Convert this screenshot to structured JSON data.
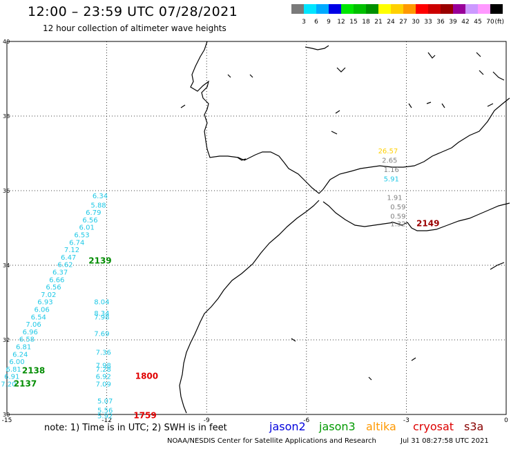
{
  "header": {
    "title": "12:00 – 23:59 UTC 07/28/2021",
    "subtitle": "12 hour collection of altimeter wave heights"
  },
  "colorbar": {
    "labels": [
      "3",
      "6",
      "9",
      "12",
      "15",
      "18",
      "21",
      "24",
      "27",
      "30",
      "33",
      "36",
      "39",
      "42",
      "45",
      "70"
    ],
    "unit": "(ft)",
    "colors": [
      "#7a7a7a",
      "#00e5ff",
      "#00aaff",
      "#0000e6",
      "#00e600",
      "#00c000",
      "#009000",
      "#ffff00",
      "#ffd000",
      "#ff9900",
      "#ff0000",
      "#cc0000",
      "#990000",
      "#990099",
      "#cc99ff",
      "#ff99ff",
      "#000000"
    ]
  },
  "axes": {
    "x_ticks": [
      "-15",
      "-12",
      "-9",
      "-6",
      "-3",
      "0"
    ],
    "y_ticks": [
      "40",
      "38",
      "36",
      "34",
      "32",
      "30"
    ],
    "lon_range": [
      -15,
      0
    ],
    "lat_range": [
      30,
      40
    ]
  },
  "tracks": {
    "jason3_west": {
      "color": "#1ec8e6",
      "points": [
        {
          "lon": -12.2,
          "lat": 35.8,
          "v": "6.34"
        },
        {
          "lon": -12.25,
          "lat": 35.55,
          "v": "5.88"
        },
        {
          "lon": -12.4,
          "lat": 35.35,
          "v": "6.79"
        },
        {
          "lon": -12.5,
          "lat": 35.15,
          "v": "6.56"
        },
        {
          "lon": -12.6,
          "lat": 34.95,
          "v": "6.01"
        },
        {
          "lon": -12.75,
          "lat": 34.75,
          "v": "6.53"
        },
        {
          "lon": -12.9,
          "lat": 34.55,
          "v": "6.74"
        },
        {
          "lon": -13.05,
          "lat": 34.35,
          "v": "7.12"
        },
        {
          "lon": -13.15,
          "lat": 34.15,
          "v": "6.47"
        },
        {
          "lon": -13.25,
          "lat": 33.95,
          "v": "6.62"
        },
        {
          "lon": -13.4,
          "lat": 33.75,
          "v": "6.37"
        },
        {
          "lon": -13.5,
          "lat": 33.55,
          "v": "6.66"
        },
        {
          "lon": -13.6,
          "lat": 33.35,
          "v": "6.56"
        },
        {
          "lon": -13.75,
          "lat": 33.15,
          "v": "7.02"
        },
        {
          "lon": -13.85,
          "lat": 32.95,
          "v": "6.93"
        },
        {
          "lon": -13.95,
          "lat": 32.75,
          "v": "6.06"
        },
        {
          "lon": -14.05,
          "lat": 32.55,
          "v": "6.54"
        },
        {
          "lon": -14.2,
          "lat": 32.35,
          "v": "7.06"
        },
        {
          "lon": -14.3,
          "lat": 32.15,
          "v": "6.96"
        },
        {
          "lon": -14.4,
          "lat": 31.95,
          "v": "6.58"
        },
        {
          "lon": -14.5,
          "lat": 31.75,
          "v": "6.81"
        },
        {
          "lon": -14.6,
          "lat": 31.55,
          "v": "6.24"
        },
        {
          "lon": -14.7,
          "lat": 31.35,
          "v": "6.00"
        },
        {
          "lon": -14.8,
          "lat": 31.15,
          "v": "6.81"
        },
        {
          "lon": -14.85,
          "lat": 30.95,
          "v": "6.91"
        },
        {
          "lon": -14.95,
          "lat": 30.75,
          "v": "7.20"
        }
      ]
    },
    "jason3_mid": {
      "color": "#1ec8e6",
      "points": [
        {
          "lon": -12.15,
          "lat": 32.95,
          "v": "8.04"
        },
        {
          "lon": -12.15,
          "lat": 32.65,
          "v": "8.34"
        },
        {
          "lon": -12.15,
          "lat": 32.55,
          "v": "7.98"
        },
        {
          "lon": -12.15,
          "lat": 32.1,
          "v": "7.69"
        },
        {
          "lon": -12.1,
          "lat": 31.6,
          "v": "7.36"
        },
        {
          "lon": -12.1,
          "lat": 31.25,
          "v": "7.98"
        },
        {
          "lon": -12.1,
          "lat": 31.15,
          "v": "7.28"
        },
        {
          "lon": -12.1,
          "lat": 30.95,
          "v": "6.92"
        },
        {
          "lon": -12.1,
          "lat": 30.75,
          "v": "7.09"
        },
        {
          "lon": -12.05,
          "lat": 30.3,
          "v": "5.07"
        },
        {
          "lon": -12.05,
          "lat": 30.05,
          "v": "5.56"
        },
        {
          "lon": -12.05,
          "lat": 29.9,
          "v": "5.92"
        }
      ]
    },
    "grey_east": {
      "color": "#808080",
      "points": [
        {
          "lon": -3.5,
          "lat": 36.75,
          "v": "2.65"
        },
        {
          "lon": -3.45,
          "lat": 36.5,
          "v": "1.16"
        },
        {
          "lon": -3.35,
          "lat": 35.75,
          "v": "1.91"
        },
        {
          "lon": -3.25,
          "lat": 35.5,
          "v": "0.59"
        },
        {
          "lon": -3.25,
          "lat": 35.25,
          "v": "0.59"
        },
        {
          "lon": -3.25,
          "lat": 35.05,
          "v": "1.32"
        }
      ]
    },
    "east_other": [
      {
        "lon": -3.55,
        "lat": 37.0,
        "v": "26.57",
        "color": "#ffd000"
      },
      {
        "lon": -3.45,
        "lat": 36.25,
        "v": "5.91",
        "color": "#1ec8e6"
      }
    ]
  },
  "time_labels": [
    {
      "lon": -12.2,
      "lat": 34.05,
      "v": "2139",
      "color": "#008c00"
    },
    {
      "lon": -14.2,
      "lat": 31.1,
      "v": "2138",
      "color": "#008c00"
    },
    {
      "lon": -14.45,
      "lat": 30.75,
      "v": "2137",
      "color": "#008c00"
    },
    {
      "lon": -10.8,
      "lat": 30.95,
      "v": "1800",
      "color": "#e00000"
    },
    {
      "lon": -10.85,
      "lat": 29.9,
      "v": "1759",
      "color": "#e00000"
    },
    {
      "lon": -2.35,
      "lat": 35.05,
      "v": "2149",
      "color": "#9b0000"
    }
  ],
  "footer": {
    "note": "note: 1) Time is in UTC; 2) SWH is in feet",
    "legend": [
      {
        "name": "jason2",
        "color": "#0000dd"
      },
      {
        "name": "jason3",
        "color": "#009900"
      },
      {
        "name": "altika",
        "color": "#ff9900"
      },
      {
        "name": "cryosat",
        "color": "#dd0000"
      },
      {
        "name": "s3a",
        "color": "#880000"
      }
    ],
    "credit": "NOAA/NESDIS Center for Satellite Applications and Research",
    "timestamp": "Jul 31 08:27:58 UTC 2021"
  }
}
